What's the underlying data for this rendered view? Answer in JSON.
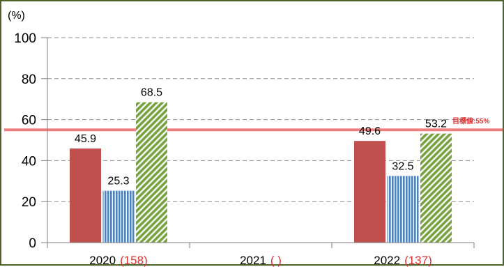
{
  "chart_data": {
    "type": "bar",
    "unit_label": "(%)",
    "ylim": [
      0,
      100
    ],
    "yticks": [
      0,
      20,
      40,
      60,
      80,
      100
    ],
    "grid": "horizontal-dashed",
    "categories": [
      {
        "year": "2020",
        "n": "(158)"
      },
      {
        "year": "2021",
        "n": "(  )"
      },
      {
        "year": "2022",
        "n": "(137)"
      }
    ],
    "series": [
      {
        "values": [
          45.9,
          null,
          49.6
        ],
        "color": "#c0504d",
        "pattern": "solid"
      },
      {
        "values": [
          25.3,
          null,
          32.5
        ],
        "color": "#4f81bd",
        "pattern": "vertical-stripes"
      },
      {
        "values": [
          68.5,
          null,
          53.2
        ],
        "color": "#77a33e",
        "pattern": "diagonal-stripes"
      }
    ],
    "target": {
      "value": 55,
      "label": "目標値:55%",
      "color": "#f08080",
      "label_color": "#e03030"
    }
  }
}
